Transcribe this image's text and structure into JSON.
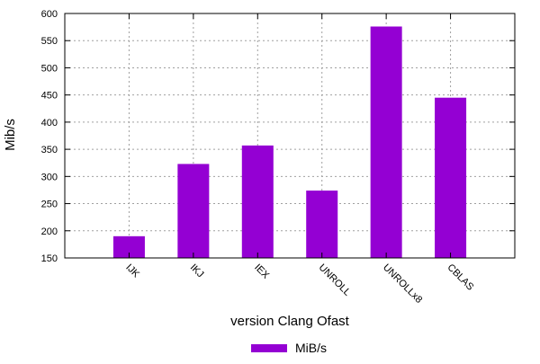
{
  "chart_data": {
    "type": "bar",
    "title": "",
    "xlabel": "version Clang Ofast",
    "ylabel": "Mib/s",
    "ylim": [
      150,
      600
    ],
    "yticks": [
      150,
      200,
      250,
      300,
      350,
      400,
      450,
      500,
      550,
      600
    ],
    "categories": [
      "IJK",
      "IKJ",
      "IEX",
      "UNROLL",
      "UNROLLx8",
      "CBLAS"
    ],
    "series": [
      {
        "name": "MiB/s",
        "color": "#9400d3",
        "values": [
          190,
          323,
          357,
          274,
          576,
          445
        ]
      }
    ],
    "grid": true,
    "legend_position": "bottom-center"
  }
}
